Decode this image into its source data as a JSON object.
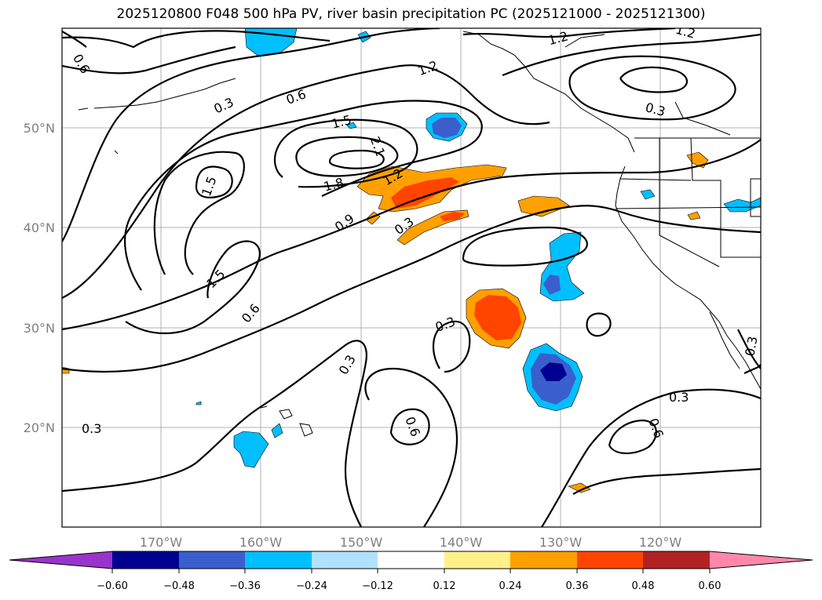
{
  "title": "2025120800 F048 500 hPa PV, river basin precipitation PC (2025121000 - 2025121300)",
  "map": {
    "lat_labels": [
      "50°N",
      "40°N",
      "30°N",
      "20°N"
    ],
    "lon_labels": [
      "170°W",
      "160°W",
      "150°W",
      "140°W",
      "130°W",
      "120°W"
    ],
    "contour_labels": [
      "0.6",
      "0.3",
      "0.6",
      "1.2",
      "1.2",
      "1.2",
      "0.3",
      "1.5",
      "2.1",
      "1.5",
      "1.8",
      "1.2",
      "0.9",
      "0.3",
      "1.5",
      "0.6",
      "0.3",
      "0.3",
      "0.3",
      "0.6",
      "0.3",
      "0.6",
      "0.3"
    ],
    "grid_color": "#b0b0b0"
  },
  "colorbar": {
    "ticks": [
      "−0.60",
      "−0.48",
      "−0.36",
      "−0.24",
      "−0.12",
      "0.12",
      "0.24",
      "0.36",
      "0.48",
      "0.60"
    ],
    "colors": [
      "#9933cc",
      "#000090",
      "#3a5fcd",
      "#00bfff",
      "#b0e2ff",
      "#ffffff",
      "#fff08a",
      "#ffa000",
      "#ff4500",
      "#b22222",
      "#ff88aa"
    ]
  },
  "colors": {
    "orange": "#ffa000",
    "red_orange": "#ff4500",
    "sky": "#00bfff",
    "royal": "#3a5fcd",
    "navy": "#000090"
  }
}
